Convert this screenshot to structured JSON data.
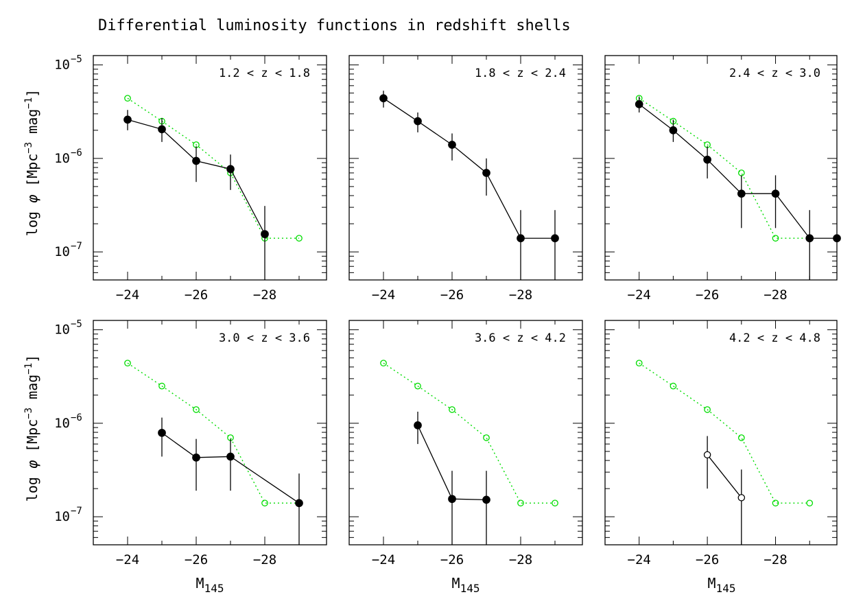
{
  "figure": {
    "title": "Differential luminosity functions in redshift shells",
    "ylabel_main": "log ",
    "ylabel_phi": "φ",
    "ylabel_unit_a": " [Mpc",
    "ylabel_exp1": "−3",
    "ylabel_unit_b": " mag",
    "ylabel_exp2": "−1",
    "ylabel_unit_c": "]",
    "xlabel_main": "M",
    "xlabel_sub": "145",
    "x_tick_labels": [
      "−24",
      "−26",
      "−28"
    ],
    "y_tick_base": "10",
    "y_tick_exps": [
      "−5",
      "−6",
      "−7"
    ],
    "colors": {
      "reference": "#00dd00",
      "data": "#000000"
    }
  },
  "chart_data": [
    {
      "type": "line",
      "label": "1.2 < z < 1.8",
      "xlim": [
        -23,
        -29.8
      ],
      "ylim_log10": [
        -7.3,
        -4.9
      ],
      "y_scale": "log",
      "reference": {
        "x": [
          -24,
          -25,
          -26,
          -27,
          -28,
          -29
        ],
        "y": [
          4.4e-06,
          2.5e-06,
          1.4e-06,
          7e-07,
          1.4e-07,
          1.4e-07
        ]
      },
      "data": {
        "x": [
          -24,
          -25,
          -26,
          -27,
          -28
        ],
        "y": [
          2.6e-06,
          2.05e-06,
          9.4e-07,
          7.7e-07,
          1.55e-07
        ],
        "y_lo": [
          2e-06,
          1.5e-06,
          5.6e-07,
          4.6e-07,
          5e-08
        ],
        "y_hi": [
          3.3e-06,
          2.7e-06,
          1.35e-06,
          1.1e-06,
          3.1e-07
        ],
        "open": [
          false,
          false,
          false,
          false,
          false
        ]
      }
    },
    {
      "type": "line",
      "label": "1.8 < z < 2.4",
      "xlim": [
        -23,
        -29.8
      ],
      "ylim_log10": [
        -7.3,
        -4.9
      ],
      "y_scale": "log",
      "reference": null,
      "data": {
        "x": [
          -24,
          -25,
          -26,
          -27,
          -28,
          -29
        ],
        "y": [
          4.4e-06,
          2.5e-06,
          1.4e-06,
          7e-07,
          1.4e-07,
          1.4e-07
        ],
        "y_lo": [
          3.5e-06,
          1.9e-06,
          9.5e-07,
          4e-07,
          5e-08,
          5e-08
        ],
        "y_hi": [
          5.3e-06,
          3.1e-06,
          1.85e-06,
          1e-06,
          2.8e-07,
          2.8e-07
        ],
        "open": [
          false,
          false,
          false,
          false,
          false,
          false
        ]
      }
    },
    {
      "type": "line",
      "label": "2.4 < z < 3.0",
      "xlim": [
        -23,
        -29.8
      ],
      "ylim_log10": [
        -7.3,
        -4.9
      ],
      "y_scale": "log",
      "reference": {
        "x": [
          -24,
          -25,
          -26,
          -27,
          -28,
          -29
        ],
        "y": [
          4.4e-06,
          2.5e-06,
          1.4e-06,
          7e-07,
          1.4e-07,
          1.4e-07
        ]
      },
      "data": {
        "x": [
          -24,
          -25,
          -26,
          -27,
          -28,
          -29,
          -29.8
        ],
        "y": [
          3.8e-06,
          2e-06,
          9.7e-07,
          4.2e-07,
          4.2e-07,
          1.4e-07,
          1.4e-07
        ],
        "y_lo": [
          3.1e-06,
          1.5e-06,
          6.1e-07,
          1.8e-07,
          1.8e-07,
          5e-08,
          null
        ],
        "y_hi": [
          4.6e-06,
          2.6e-06,
          1.35e-06,
          6.6e-07,
          6.6e-07,
          2.8e-07,
          null
        ],
        "open": [
          false,
          false,
          false,
          false,
          false,
          false,
          false
        ]
      }
    },
    {
      "type": "line",
      "label": "3.0 < z < 3.6",
      "xlim": [
        -23,
        -29.8
      ],
      "ylim_log10": [
        -7.3,
        -4.9
      ],
      "y_scale": "log",
      "reference": {
        "x": [
          -24,
          -25,
          -26,
          -27,
          -28,
          -29
        ],
        "y": [
          4.4e-06,
          2.5e-06,
          1.4e-06,
          7e-07,
          1.4e-07,
          1.4e-07
        ]
      },
      "data": {
        "x": [
          -25,
          -26,
          -27,
          -29
        ],
        "y": [
          7.9e-07,
          4.3e-07,
          4.4e-07,
          1.4e-07
        ],
        "y_lo": [
          4.4e-07,
          1.9e-07,
          1.9e-07,
          5e-08
        ],
        "y_hi": [
          1.15e-06,
          6.8e-07,
          6.8e-07,
          2.9e-07
        ],
        "open": [
          false,
          false,
          false,
          false
        ]
      }
    },
    {
      "type": "line",
      "label": "3.6 < z < 4.2",
      "xlim": [
        -23,
        -29.8
      ],
      "ylim_log10": [
        -7.3,
        -4.9
      ],
      "y_scale": "log",
      "reference": {
        "x": [
          -24,
          -25,
          -26,
          -27,
          -28,
          -29
        ],
        "y": [
          4.4e-06,
          2.5e-06,
          1.4e-06,
          7e-07,
          1.4e-07,
          1.4e-07
        ]
      },
      "data": {
        "x": [
          -25,
          -26,
          -27
        ],
        "y": [
          9.5e-07,
          1.55e-07,
          1.52e-07
        ],
        "y_lo": [
          6e-07,
          5e-08,
          5e-08
        ],
        "y_hi": [
          1.33e-06,
          3.1e-07,
          3.1e-07
        ],
        "open": [
          false,
          false,
          false
        ]
      }
    },
    {
      "type": "line",
      "label": "4.2 < z < 4.8",
      "xlim": [
        -23,
        -29.8
      ],
      "ylim_log10": [
        -7.3,
        -4.9
      ],
      "y_scale": "log",
      "reference": {
        "x": [
          -24,
          -25,
          -26,
          -27,
          -28,
          -29
        ],
        "y": [
          4.4e-06,
          2.5e-06,
          1.4e-06,
          7e-07,
          1.4e-07,
          1.4e-07
        ]
      },
      "data": {
        "x": [
          -26,
          -27
        ],
        "y": [
          4.6e-07,
          1.6e-07
        ],
        "y_lo": [
          2e-07,
          5e-08
        ],
        "y_hi": [
          7.3e-07,
          3.2e-07
        ],
        "open": [
          true,
          true
        ]
      }
    }
  ]
}
